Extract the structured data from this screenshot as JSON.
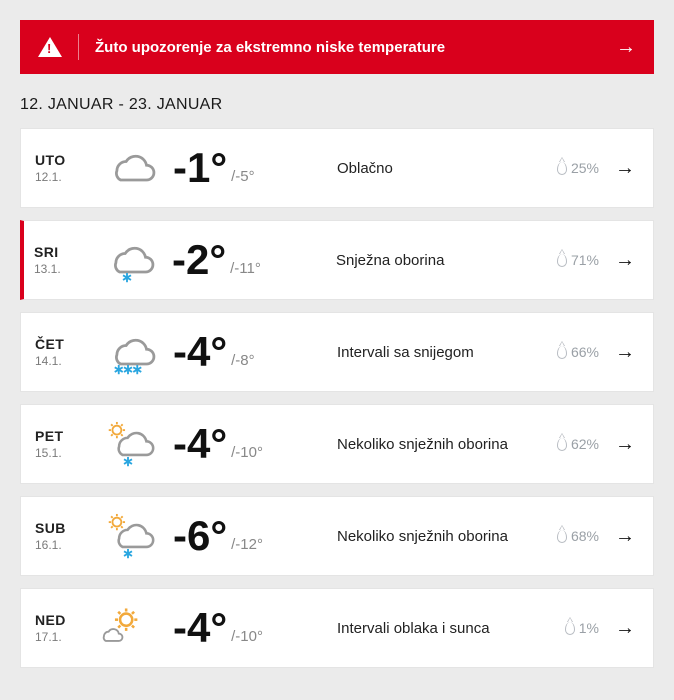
{
  "alert": {
    "text": "Žuto upozorenje za ekstremno niske temperature"
  },
  "range_title": "12. JANUAR - 23. JANUAR",
  "colors": {
    "alert_bg": "#d9001c",
    "page_bg": "#ebebeb",
    "card_bg": "#ffffff",
    "muted": "#888888",
    "precip": "#9aa0a6"
  },
  "days": [
    {
      "dow": "UTO",
      "date": "12.1.",
      "hi": "-1°",
      "lo": "/-5°",
      "desc": "Oblačno",
      "precip": "25%",
      "icon": "cloud",
      "highlight": false
    },
    {
      "dow": "SRI",
      "date": "13.1.",
      "hi": "-2°",
      "lo": "/-11°",
      "desc": "Snježna oborina",
      "precip": "71%",
      "icon": "cloud-snow1",
      "highlight": true
    },
    {
      "dow": "ČET",
      "date": "14.1.",
      "hi": "-4°",
      "lo": "/-8°",
      "desc": "Intervali sa snijegom",
      "precip": "66%",
      "icon": "cloud-snow3",
      "highlight": false
    },
    {
      "dow": "PET",
      "date": "15.1.",
      "hi": "-4°",
      "lo": "/-10°",
      "desc": "Nekoliko snježnih oborina",
      "precip": "62%",
      "icon": "suncloud-snow",
      "highlight": false
    },
    {
      "dow": "SUB",
      "date": "16.1.",
      "hi": "-6°",
      "lo": "/-12°",
      "desc": "Nekoliko snježnih oborina",
      "precip": "68%",
      "icon": "suncloud-snow",
      "highlight": false
    },
    {
      "dow": "NED",
      "date": "17.1.",
      "hi": "-4°",
      "lo": "/-10°",
      "desc": "Intervali oblaka i sunca",
      "precip": "1%",
      "icon": "suncloud",
      "highlight": false
    }
  ]
}
